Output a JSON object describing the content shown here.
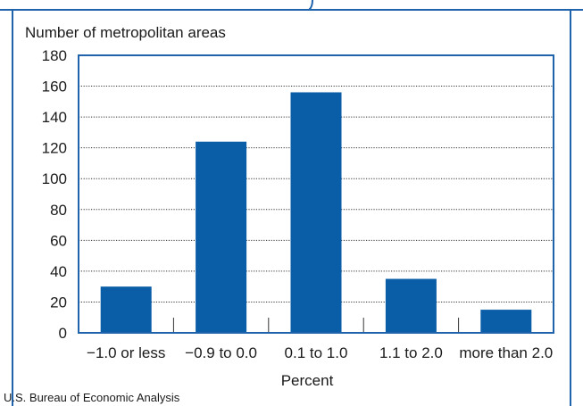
{
  "colors": {
    "frame": "#1f63ad",
    "bar": "#0a5ea8",
    "grid": "#333333",
    "text": "#1a1a1a"
  },
  "chart_data": {
    "type": "bar",
    "title": "",
    "ylabel": "Number of metropolitan areas",
    "xlabel": "Percent",
    "categories": [
      "−1.0 or less",
      "−0.9 to 0.0",
      "0.1 to 1.0",
      "1.1 to 2.0",
      "more than 2.0"
    ],
    "values": [
      30,
      124,
      156,
      35,
      15
    ],
    "ylim": [
      0,
      180
    ],
    "yticks": [
      "0",
      "20",
      "40",
      "60",
      "80",
      "100",
      "120",
      "140",
      "160",
      "180"
    ],
    "grid": "horizontal dotted",
    "legend": "none"
  },
  "source": "U.S. Bureau of Economic Analysis"
}
